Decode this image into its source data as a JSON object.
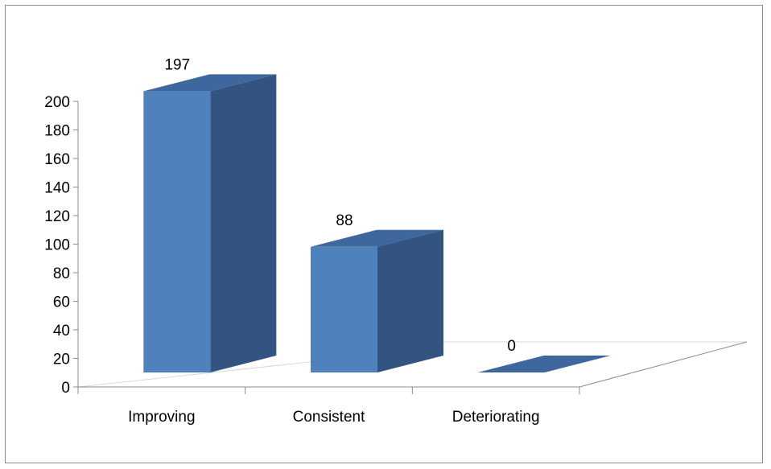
{
  "chart_data": {
    "type": "bar",
    "categories": [
      "Improving",
      "Consistent",
      "Deteriorating"
    ],
    "values": [
      197,
      88,
      0
    ],
    "data_labels": [
      "197",
      "88",
      "0"
    ],
    "ylim": [
      0,
      200
    ],
    "yticks": [
      "0",
      "20",
      "40",
      "60",
      "80",
      "100",
      "120",
      "140",
      "160",
      "180",
      "200"
    ],
    "title": "",
    "xlabel": "",
    "ylabel": "",
    "grid": false,
    "legend": "none",
    "three_d": true,
    "colors": {
      "front": "#4f81bd",
      "side": "#335480",
      "top": "#3d679d",
      "axis": "#8c8c8c",
      "floor": "#d9d9d9"
    }
  }
}
